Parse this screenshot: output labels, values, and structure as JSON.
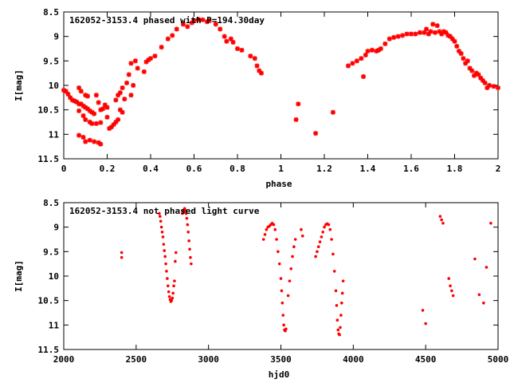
{
  "colors": {
    "points": "#ff0000",
    "axes": "#000000",
    "background": "#ffffff"
  },
  "chart_data": [
    {
      "type": "scatter",
      "title": "162052-3153.4 phased with P=194.30day",
      "xlabel": "phase",
      "ylabel": "I[mag]",
      "xlim": [
        0,
        2
      ],
      "ylim": [
        8.5,
        11.5
      ],
      "y_inverted": true,
      "grid": false,
      "xticks": [
        {
          "v": 0,
          "label": "0"
        },
        {
          "v": 0.2,
          "label": "0.2"
        },
        {
          "v": 0.4,
          "label": "0.4"
        },
        {
          "v": 0.6,
          "label": "0.6"
        },
        {
          "v": 0.8,
          "label": "0.8"
        },
        {
          "v": 1,
          "label": "1"
        },
        {
          "v": 1.2,
          "label": "1.2"
        },
        {
          "v": 1.4,
          "label": "1.4"
        },
        {
          "v": 1.6,
          "label": "1.6"
        },
        {
          "v": 1.8,
          "label": "1.8"
        },
        {
          "v": 2,
          "label": "2"
        }
      ],
      "yticks": [
        {
          "v": 8.5,
          "label": "8.5"
        },
        {
          "v": 9,
          "label": "9"
        },
        {
          "v": 9.5,
          "label": "9.5"
        },
        {
          "v": 10,
          "label": "10"
        },
        {
          "v": 10.5,
          "label": "10.5"
        },
        {
          "v": 11,
          "label": "11"
        },
        {
          "v": 11.5,
          "label": "11.5"
        }
      ],
      "marker": "star",
      "points": [
        [
          0.0,
          10.1
        ],
        [
          0.01,
          10.12
        ],
        [
          0.02,
          10.18
        ],
        [
          0.03,
          10.25
        ],
        [
          0.04,
          10.3
        ],
        [
          0.05,
          10.32
        ],
        [
          0.06,
          10.34
        ],
        [
          0.07,
          10.38
        ],
        [
          0.08,
          10.38
        ],
        [
          0.09,
          10.42
        ],
        [
          0.1,
          10.45
        ],
        [
          0.11,
          10.48
        ],
        [
          0.12,
          10.52
        ],
        [
          0.13,
          10.55
        ],
        [
          0.14,
          10.58
        ],
        [
          0.07,
          10.05
        ],
        [
          0.08,
          10.12
        ],
        [
          0.1,
          10.2
        ],
        [
          0.11,
          10.22
        ],
        [
          0.07,
          10.52
        ],
        [
          0.09,
          10.62
        ],
        [
          0.1,
          10.7
        ],
        [
          0.12,
          10.75
        ],
        [
          0.13,
          10.78
        ],
        [
          0.15,
          10.78
        ],
        [
          0.17,
          10.76
        ],
        [
          0.07,
          11.02
        ],
        [
          0.09,
          11.06
        ],
        [
          0.1,
          11.15
        ],
        [
          0.12,
          11.12
        ],
        [
          0.14,
          11.15
        ],
        [
          0.16,
          11.17
        ],
        [
          0.17,
          11.2
        ],
        [
          0.15,
          10.2
        ],
        [
          0.16,
          10.35
        ],
        [
          0.17,
          10.5
        ],
        [
          0.18,
          10.48
        ],
        [
          0.19,
          10.4
        ],
        [
          0.2,
          10.45
        ],
        [
          0.2,
          10.65
        ],
        [
          0.21,
          10.88
        ],
        [
          0.22,
          10.85
        ],
        [
          0.23,
          10.8
        ],
        [
          0.24,
          10.75
        ],
        [
          0.25,
          10.7
        ],
        [
          0.24,
          10.3
        ],
        [
          0.25,
          10.2
        ],
        [
          0.26,
          10.15
        ],
        [
          0.26,
          10.5
        ],
        [
          0.27,
          10.55
        ],
        [
          0.28,
          10.28
        ],
        [
          0.27,
          10.05
        ],
        [
          0.29,
          9.95
        ],
        [
          0.3,
          9.78
        ],
        [
          0.31,
          9.55
        ],
        [
          0.31,
          10.2
        ],
        [
          0.32,
          10.0
        ],
        [
          0.33,
          9.5
        ],
        [
          0.34,
          9.65
        ],
        [
          0.37,
          9.72
        ],
        [
          0.38,
          9.52
        ],
        [
          0.39,
          9.48
        ],
        [
          0.4,
          9.45
        ],
        [
          0.42,
          9.4
        ],
        [
          0.45,
          9.22
        ],
        [
          0.48,
          9.05
        ],
        [
          0.5,
          8.98
        ],
        [
          0.52,
          8.85
        ],
        [
          0.55,
          8.75
        ],
        [
          0.57,
          8.8
        ],
        [
          0.59,
          8.72
        ],
        [
          0.6,
          8.68
        ],
        [
          0.62,
          8.65
        ],
        [
          0.64,
          8.66
        ],
        [
          0.66,
          8.7
        ],
        [
          0.67,
          8.68
        ],
        [
          0.7,
          8.75
        ],
        [
          0.72,
          8.85
        ],
        [
          0.74,
          9.0
        ],
        [
          0.75,
          9.1
        ],
        [
          0.77,
          9.05
        ],
        [
          0.78,
          9.12
        ],
        [
          0.8,
          9.25
        ],
        [
          0.82,
          9.28
        ],
        [
          0.86,
          9.4
        ],
        [
          0.88,
          9.45
        ],
        [
          0.89,
          9.6
        ],
        [
          0.9,
          9.7
        ],
        [
          0.91,
          9.75
        ],
        [
          1.07,
          10.7
        ],
        [
          1.08,
          10.38
        ],
        [
          1.16,
          10.98
        ],
        [
          1.24,
          10.55
        ],
        [
          1.31,
          9.6
        ],
        [
          1.33,
          9.55
        ],
        [
          1.35,
          9.5
        ],
        [
          1.37,
          9.45
        ],
        [
          1.38,
          9.82
        ],
        [
          1.39,
          9.38
        ],
        [
          1.4,
          9.3
        ],
        [
          1.42,
          9.28
        ],
        [
          1.44,
          9.3
        ],
        [
          1.45,
          9.28
        ],
        [
          1.46,
          9.25
        ],
        [
          1.48,
          9.15
        ],
        [
          1.5,
          9.05
        ],
        [
          1.52,
          9.02
        ],
        [
          1.54,
          9.0
        ],
        [
          1.56,
          8.98
        ],
        [
          1.58,
          8.95
        ],
        [
          1.6,
          8.95
        ],
        [
          1.62,
          8.95
        ],
        [
          1.64,
          8.92
        ],
        [
          1.66,
          8.92
        ],
        [
          1.67,
          8.85
        ],
        [
          1.68,
          8.95
        ],
        [
          1.69,
          8.9
        ],
        [
          1.7,
          8.75
        ],
        [
          1.71,
          8.92
        ],
        [
          1.72,
          8.78
        ],
        [
          1.73,
          8.9
        ],
        [
          1.74,
          8.95
        ],
        [
          1.75,
          8.9
        ],
        [
          1.76,
          8.92
        ],
        [
          1.77,
          8.98
        ],
        [
          1.78,
          9.0
        ],
        [
          1.79,
          9.05
        ],
        [
          1.8,
          9.1
        ],
        [
          1.81,
          9.2
        ],
        [
          1.82,
          9.3
        ],
        [
          1.83,
          9.35
        ],
        [
          1.84,
          9.45
        ],
        [
          1.85,
          9.55
        ],
        [
          1.86,
          9.5
        ],
        [
          1.87,
          9.65
        ],
        [
          1.88,
          9.7
        ],
        [
          1.89,
          9.8
        ],
        [
          1.9,
          9.75
        ],
        [
          1.91,
          9.78
        ],
        [
          1.92,
          9.85
        ],
        [
          1.93,
          9.9
        ],
        [
          1.94,
          9.95
        ],
        [
          1.95,
          10.05
        ],
        [
          1.96,
          10.0
        ],
        [
          1.98,
          10.02
        ],
        [
          2.0,
          10.05
        ]
      ]
    },
    {
      "type": "scatter",
      "title": "162052-3153.4 not phased light curve",
      "xlabel": "hjd0",
      "ylabel": "I[mag]",
      "xlim": [
        2000,
        5000
      ],
      "ylim": [
        8.5,
        11.5
      ],
      "y_inverted": true,
      "grid": false,
      "xticks": [
        {
          "v": 2000,
          "label": "2000"
        },
        {
          "v": 2500,
          "label": "2500"
        },
        {
          "v": 3000,
          "label": "3000"
        },
        {
          "v": 3500,
          "label": "3500"
        },
        {
          "v": 4000,
          "label": "4000"
        },
        {
          "v": 4500,
          "label": "4500"
        },
        {
          "v": 5000,
          "label": "5000"
        }
      ],
      "yticks": [
        {
          "v": 8.5,
          "label": "8.5"
        },
        {
          "v": 9,
          "label": "9"
        },
        {
          "v": 9.5,
          "label": "9.5"
        },
        {
          "v": 10,
          "label": "10"
        },
        {
          "v": 10.5,
          "label": "10.5"
        },
        {
          "v": 11,
          "label": "11"
        },
        {
          "v": 11.5,
          "label": "11.5"
        }
      ],
      "marker": "dot",
      "points": [
        [
          2400,
          9.52
        ],
        [
          2400,
          9.62
        ],
        [
          2660,
          8.72
        ],
        [
          2665,
          8.78
        ],
        [
          2670,
          8.88
        ],
        [
          2675,
          9.0
        ],
        [
          2680,
          9.1
        ],
        [
          2685,
          9.2
        ],
        [
          2690,
          9.35
        ],
        [
          2695,
          9.48
        ],
        [
          2700,
          9.6
        ],
        [
          2705,
          9.75
        ],
        [
          2710,
          9.9
        ],
        [
          2715,
          10.05
        ],
        [
          2720,
          10.2
        ],
        [
          2725,
          10.32
        ],
        [
          2730,
          10.42
        ],
        [
          2735,
          10.48
        ],
        [
          2740,
          10.52
        ],
        [
          2745,
          10.5
        ],
        [
          2750,
          10.45
        ],
        [
          2755,
          10.35
        ],
        [
          2760,
          10.2
        ],
        [
          2765,
          10.1
        ],
        [
          2770,
          9.7
        ],
        [
          2775,
          9.52
        ],
        [
          2820,
          8.72
        ],
        [
          2825,
          8.68
        ],
        [
          2830,
          8.65
        ],
        [
          2835,
          8.62
        ],
        [
          2840,
          8.66
        ],
        [
          2845,
          8.72
        ],
        [
          2850,
          8.82
        ],
        [
          2855,
          8.95
        ],
        [
          2860,
          9.1
        ],
        [
          2865,
          9.28
        ],
        [
          2870,
          9.45
        ],
        [
          2875,
          9.62
        ],
        [
          2880,
          9.75
        ],
        [
          3380,
          9.25
        ],
        [
          3390,
          9.15
        ],
        [
          3400,
          9.05
        ],
        [
          3410,
          9.0
        ],
        [
          3420,
          8.98
        ],
        [
          3430,
          8.95
        ],
        [
          3440,
          8.92
        ],
        [
          3450,
          8.95
        ],
        [
          3460,
          9.05
        ],
        [
          3470,
          9.25
        ],
        [
          3480,
          9.5
        ],
        [
          3490,
          9.75
        ],
        [
          3500,
          10.05
        ],
        [
          3505,
          10.3
        ],
        [
          3510,
          10.55
        ],
        [
          3515,
          10.8
        ],
        [
          3520,
          11.0
        ],
        [
          3525,
          11.1
        ],
        [
          3530,
          11.12
        ],
        [
          3535,
          11.08
        ],
        [
          3550,
          10.4
        ],
        [
          3560,
          10.1
        ],
        [
          3570,
          9.85
        ],
        [
          3580,
          9.6
        ],
        [
          3590,
          9.4
        ],
        [
          3600,
          9.25
        ],
        [
          3640,
          9.05
        ],
        [
          3650,
          9.18
        ],
        [
          3740,
          9.6
        ],
        [
          3750,
          9.5
        ],
        [
          3760,
          9.4
        ],
        [
          3770,
          9.3
        ],
        [
          3780,
          9.2
        ],
        [
          3790,
          9.1
        ],
        [
          3800,
          9.0
        ],
        [
          3810,
          8.95
        ],
        [
          3820,
          8.93
        ],
        [
          3830,
          8.95
        ],
        [
          3840,
          9.05
        ],
        [
          3850,
          9.25
        ],
        [
          3860,
          9.55
        ],
        [
          3870,
          9.9
        ],
        [
          3880,
          10.3
        ],
        [
          3885,
          10.6
        ],
        [
          3890,
          10.9
        ],
        [
          3895,
          11.1
        ],
        [
          3900,
          11.18
        ],
        [
          3905,
          11.2
        ],
        [
          3910,
          11.05
        ],
        [
          3915,
          10.8
        ],
        [
          3920,
          10.55
        ],
        [
          3925,
          10.35
        ],
        [
          3930,
          10.1
        ],
        [
          4480,
          10.7
        ],
        [
          4500,
          10.97
        ],
        [
          4600,
          8.78
        ],
        [
          4610,
          8.85
        ],
        [
          4620,
          8.92
        ],
        [
          4660,
          10.05
        ],
        [
          4670,
          10.2
        ],
        [
          4680,
          10.3
        ],
        [
          4690,
          10.4
        ],
        [
          4840,
          9.65
        ],
        [
          4870,
          10.38
        ],
        [
          4900,
          10.55
        ],
        [
          4920,
          9.82
        ],
        [
          4950,
          8.92
        ]
      ]
    }
  ]
}
